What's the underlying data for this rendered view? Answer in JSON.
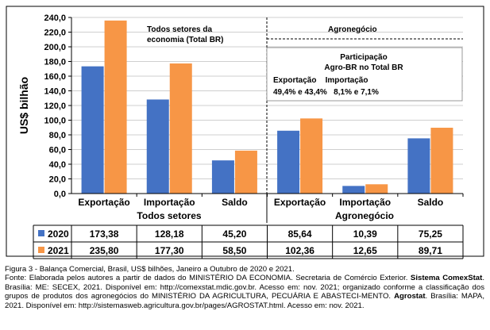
{
  "chart_data": {
    "type": "bar",
    "ylabel": "US$ bilhão",
    "ylim": [
      0,
      240
    ],
    "yticks": [
      "0,0",
      "20,0",
      "40,0",
      "60,0",
      "80,0",
      "100,0",
      "120,0",
      "140,0",
      "160,0",
      "180,0",
      "200,0",
      "220,0",
      "240,0"
    ],
    "grid": true,
    "categories": [
      "Exportação",
      "Importação",
      "Saldo",
      "Exportação",
      "Importação",
      "Saldo"
    ],
    "groups": [
      "Todos setores",
      "Agronegócio"
    ],
    "series": [
      {
        "name": "2020",
        "values": [
          173.38,
          128.18,
          45.2,
          85.64,
          10.39,
          75.25
        ],
        "labels": [
          "173,38",
          "128,18",
          "45,20",
          "85,64",
          "10,39",
          "75,25"
        ]
      },
      {
        "name": "2021",
        "values": [
          235.8,
          177.3,
          58.5,
          102.36,
          12.65,
          89.71
        ],
        "labels": [
          "235,80",
          "177,30",
          "58,50",
          "102,36",
          "12,65",
          "89,71"
        ]
      }
    ],
    "annotations": {
      "panel_left": [
        "Todos setores da",
        "economia (Total BR)"
      ],
      "panel_right": "Agronegócio",
      "participation": [
        "Participação",
        "Agro-BR  no Total BR",
        "Exportação    Importação",
        "49,4% e 43,4%   8,1% e 7,1%"
      ]
    }
  },
  "colors": {
    "s2020": "#4472C4",
    "s2021": "#F79646",
    "grid": "#bfbfbf"
  },
  "caption": {
    "line1": "Figura 3 - Balança Comercial, Brasil, US$ bilhões, Janeiro a Outubro de 2020 e 2021.",
    "line2a": "Fonte: Elaborada pelos autores a partir de dados do MINISTÉRIO DA ECONOMIA. Secretaria de Comércio Exterior.",
    "line2b": "Sistema ComexStat",
    "line2c": ". Brasília: ME: SECEX, 2021. Disponível em: http://comexstat.mdic.gov.br. Acesso em: nov. 2021; organizado conforme a classificação dos grupos de produtos dos agronegócios do MINISTÉRIO DA AGRICULTURA, PECUÁRIA E ABASTECI-MENTO.",
    "line2d": "Agrostat",
    "line2e": ". Brasília: MAPA, 2021. Disponível em: http://sistemasweb.agricultura.gov.br/pages/AGROSTAT.html. Acesso em: nov. 2021."
  }
}
